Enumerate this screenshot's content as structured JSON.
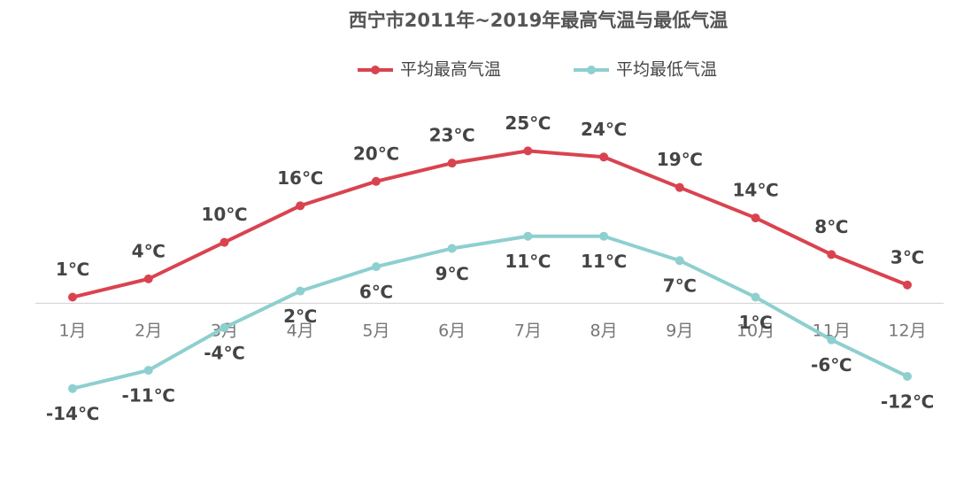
{
  "chart_data": {
    "type": "line",
    "title": "西宁市2011年~2019年最高气温与最低气温",
    "categories": [
      "1月",
      "2月",
      "3月",
      "4月",
      "5月",
      "6月",
      "7月",
      "8月",
      "9月",
      "10月",
      "11月",
      "12月"
    ],
    "series": [
      {
        "name": "平均最高气温",
        "color": "#d9434f",
        "values": [
          1,
          4,
          10,
          16,
          20,
          23,
          25,
          24,
          19,
          14,
          8,
          3
        ],
        "value_labels": [
          "1℃",
          "4℃",
          "10℃",
          "16℃",
          "20℃",
          "23℃",
          "25℃",
          "24℃",
          "19℃",
          "14℃",
          "8℃",
          "3℃"
        ]
      },
      {
        "name": "平均最低气温",
        "color": "#8ecfcf",
        "values": [
          -14,
          -11,
          -4,
          2,
          6,
          9,
          11,
          11,
          7,
          1,
          -6,
          -12
        ],
        "value_labels": [
          "-14℃",
          "-11℃",
          "-4℃",
          "2℃",
          "6℃",
          "9℃",
          "11℃",
          "11℃",
          "7℃",
          "1℃",
          "-6℃",
          "-12℃"
        ]
      }
    ],
    "ylim": [
      -20,
      30
    ],
    "legend": "top"
  }
}
